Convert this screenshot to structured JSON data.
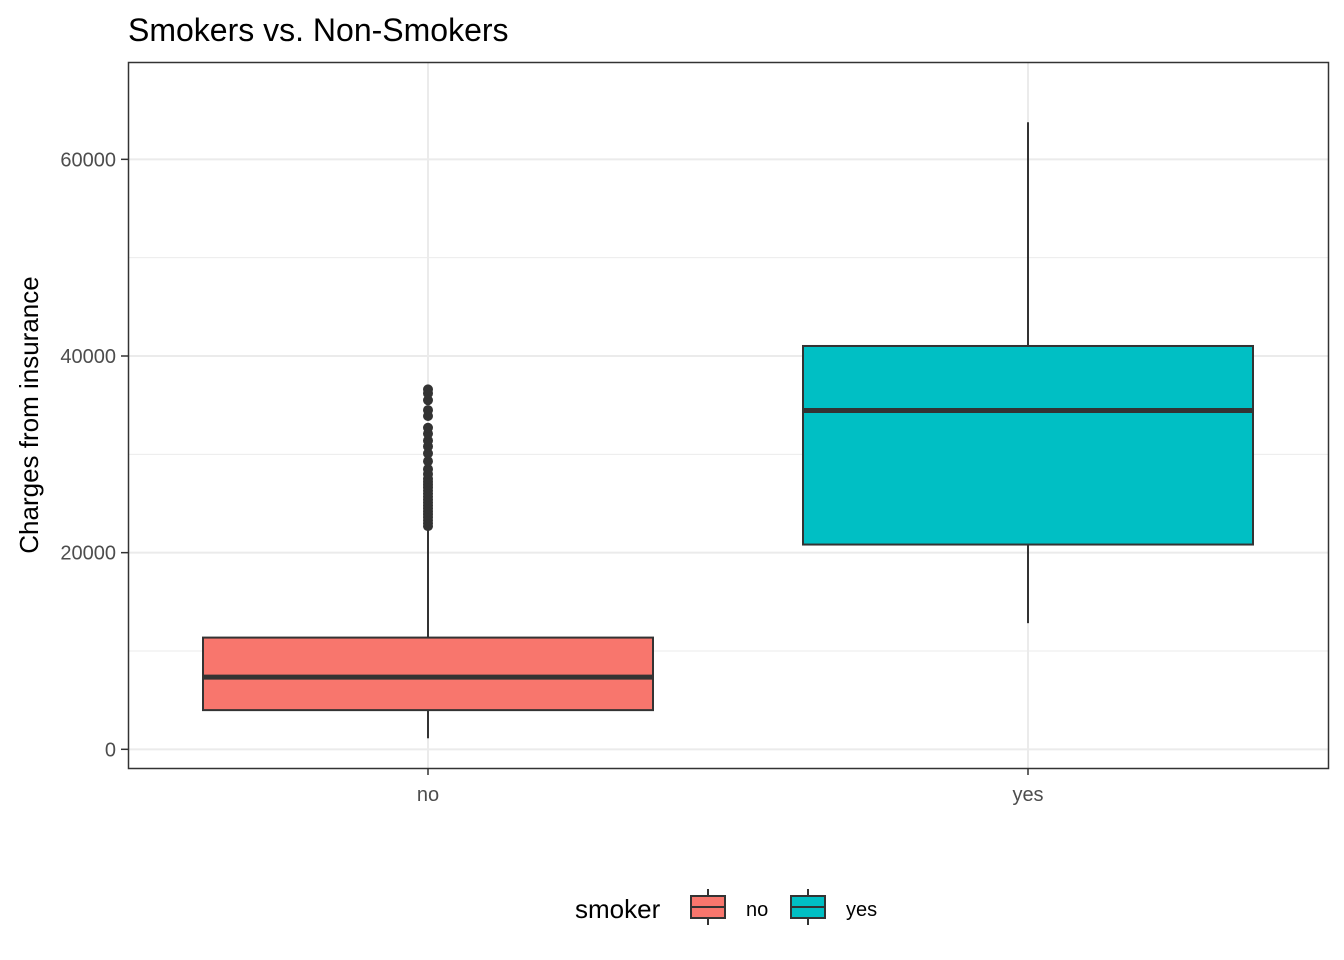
{
  "chart_data": {
    "type": "box",
    "title": "Smokers vs. Non-Smokers",
    "xlabel": "",
    "ylabel": "Charges from insurance",
    "ylim": [
      -1900,
      69900
    ],
    "yticks": [
      0,
      20000,
      40000,
      60000
    ],
    "yticks_labels": [
      "0",
      "20000",
      "40000",
      "60000"
    ],
    "categories": [
      "no",
      "yes"
    ],
    "grid": true,
    "series": [
      {
        "name": "no",
        "color": "#F8766D",
        "whisker_low": 1122,
        "q1": 3986,
        "median": 7345,
        "q3": 11363,
        "whisker_high": 22630,
        "outliers": [
          22700,
          23000,
          23300,
          23600,
          23900,
          24200,
          24500,
          24800,
          25100,
          25400,
          25700,
          26000,
          26300,
          26600,
          26900,
          27200,
          27500,
          28000,
          28500,
          29300,
          30100,
          30800,
          31400,
          32100,
          32700,
          33900,
          34500,
          35500,
          36200,
          36600
        ]
      },
      {
        "name": "yes",
        "color": "#00BFC4",
        "whisker_low": 12830,
        "q1": 20826,
        "median": 34456,
        "q3": 41019,
        "whisker_high": 63770,
        "outliers": []
      }
    ],
    "legend": {
      "title": "smoker",
      "position": "bottom",
      "entries": [
        "no",
        "yes"
      ]
    }
  }
}
